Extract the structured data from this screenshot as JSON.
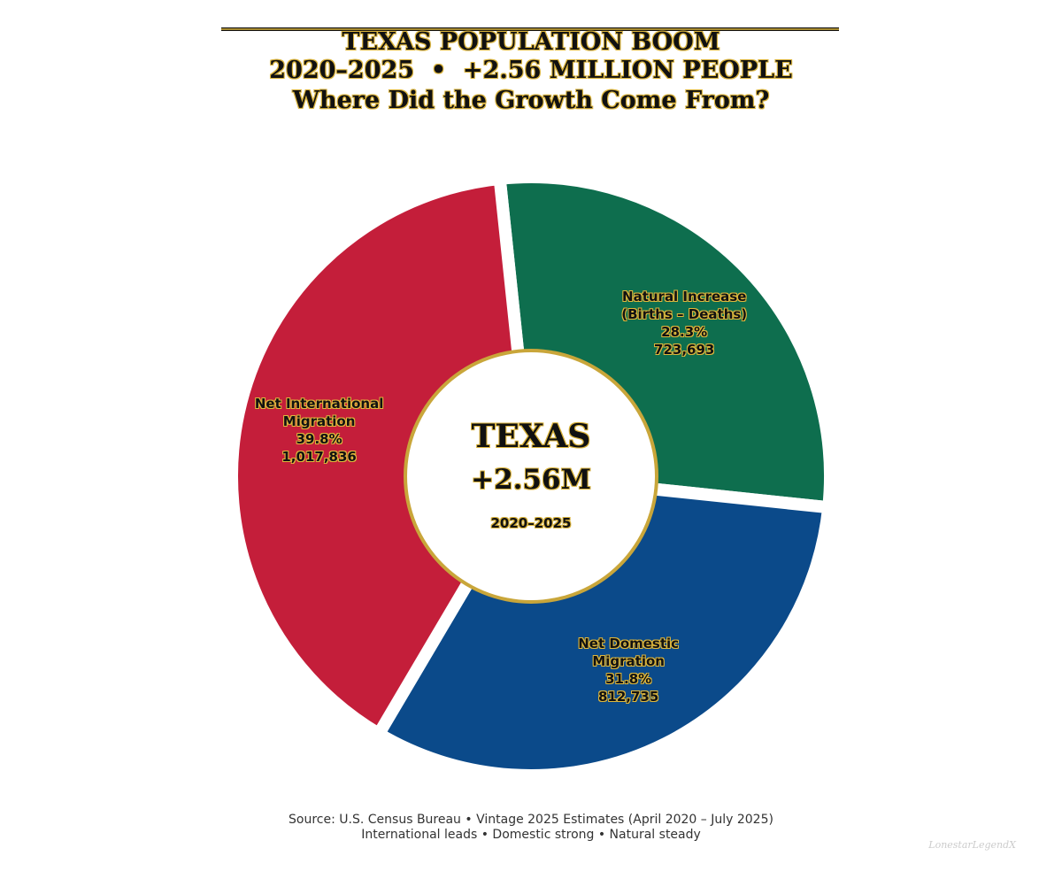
{
  "chart_data": {
    "type": "pie",
    "title": "TEXAS POPULATION BOOM",
    "subtitle": "2020–2025  •  +2.56 MILLION PEOPLE",
    "subtitle2": "Where Did the Growth Come From?",
    "categories": [
      "Natural Increase (Births – Deaths)",
      "Net Domestic Migration",
      "Net International Migration"
    ],
    "values": [
      28.3,
      31.8,
      39.8
    ],
    "value_labels": [
      "28.3%",
      "31.8%",
      "39.8%"
    ],
    "population": [
      723693,
      812735,
      1017836
    ],
    "population_labels": [
      "723,693",
      "812,735",
      "1,017,836"
    ],
    "colors": [
      "#0e6e4e",
      "#0b4a8a",
      "#c41e3a"
    ],
    "center_title": "TEXAS",
    "center_value": "+2.56M",
    "center_period": "2020–2025",
    "source": "Source: U.S. Census Bureau  •  Vintage 2025 Estimates (April 2020 – July 2025)",
    "note": "International leads  •  Domestic strong  •  Natural steady",
    "watermark": "LonestarLegendX"
  }
}
